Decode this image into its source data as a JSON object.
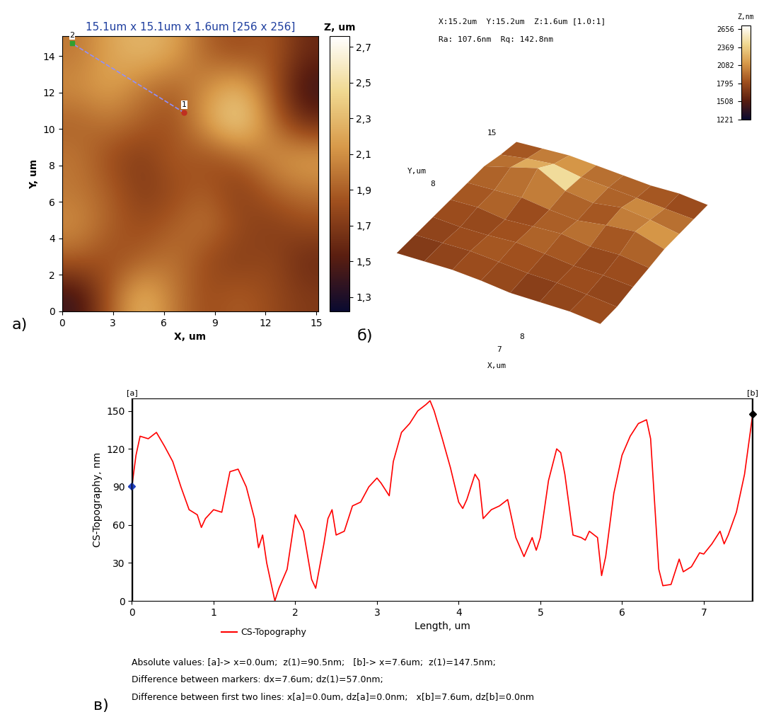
{
  "chart_data": [
    {
      "type": "heatmap",
      "panel_label": "а)",
      "title": "15.1um x 15.1um x 1.6um [256 x 256]",
      "x_label": "X, um",
      "y_label": "Y, um",
      "xlim": [
        0,
        15.1
      ],
      "ylim": [
        0,
        15.1
      ],
      "xticks": [
        0,
        3,
        6,
        9,
        12,
        15
      ],
      "yticks": [
        0,
        2,
        4,
        6,
        8,
        10,
        12,
        14
      ],
      "cells": [
        [
          1.4,
          1.9,
          2.3,
          2.0,
          1.8,
          1.9,
          1.8,
          1.7
        ],
        [
          1.9,
          1.8,
          1.9,
          2.0,
          1.8,
          1.7,
          1.8,
          1.6
        ],
        [
          2.1,
          1.9,
          1.8,
          1.9,
          2.0,
          1.8,
          1.7,
          1.8
        ],
        [
          2.0,
          1.9,
          1.7,
          1.8,
          1.9,
          1.7,
          1.9,
          2.0
        ],
        [
          2.0,
          1.8,
          1.7,
          1.9,
          1.8,
          1.9,
          2.1,
          2.2
        ],
        [
          1.9,
          2.0,
          1.9,
          1.8,
          2.2,
          2.5,
          2.0,
          1.6
        ],
        [
          2.1,
          2.2,
          2.0,
          1.9,
          2.1,
          2.3,
          1.9,
          1.4
        ],
        [
          2.0,
          2.2,
          2.3,
          2.2,
          1.9,
          1.8,
          1.9,
          1.6
        ]
      ],
      "colorbar_label": "Z, um",
      "colorbar_range": [
        1.22,
        2.76
      ],
      "colorbar_ticks": [
        {
          "value": 1.3,
          "label": "1,3"
        },
        {
          "value": 1.5,
          "label": "1,5"
        },
        {
          "value": 1.7,
          "label": "1,7"
        },
        {
          "value": 1.9,
          "label": "1,9"
        },
        {
          "value": 2.1,
          "label": "2,1"
        },
        {
          "value": 2.3,
          "label": "2,3"
        },
        {
          "value": 2.5,
          "label": "2,5"
        },
        {
          "value": 2.7,
          "label": "2,7"
        }
      ],
      "profile_line": {
        "x": [
          7.2,
          0.6
        ],
        "y": [
          10.9,
          14.7
        ],
        "labels": [
          "1",
          "2"
        ]
      }
    },
    {
      "type": "surface",
      "panel_label": "б)",
      "annotations": [
        "X:15.2um  Y:15.2um  Z:1.6um [1.0:1]",
        "Ra: 107.6nm  Rq: 142.8nm"
      ],
      "axis_texts": [
        "15",
        "8",
        "Y,um",
        "8",
        "7",
        "X,um"
      ],
      "xlim": [
        0,
        15.2
      ],
      "ylim": [
        0,
        15.2
      ],
      "cells": [
        [
          1700,
          1750,
          1800,
          1780,
          1720,
          1760,
          1800,
          1750
        ],
        [
          1750,
          1800,
          1850,
          1820,
          1780,
          1800,
          1760,
          1700
        ],
        [
          1800,
          1780,
          1820,
          1900,
          1850,
          1780,
          1800,
          1760
        ],
        [
          1850,
          1900,
          1800,
          1880,
          1950,
          1850,
          1900,
          1800
        ],
        [
          1900,
          1950,
          2000,
          1900,
          1850,
          2000,
          2100,
          1850
        ],
        [
          1950,
          2200,
          2450,
          2000,
          1900,
          2050,
          1950,
          1800
        ],
        [
          1850,
          2000,
          2100,
          1950,
          1900,
          1850,
          1800,
          1750
        ],
        [
          1800,
          1850,
          1900,
          1850,
          1800,
          1750,
          1780,
          1700
        ]
      ],
      "colorbar_label": "Z,nm",
      "colorbar_range": [
        1221,
        2720
      ],
      "colorbar_ticks": [
        1221,
        1508,
        1795,
        2082,
        2369,
        2656
      ]
    },
    {
      "type": "line",
      "panel_label": "в)",
      "x_label": "Length, um",
      "y_label": "CS-Topography, nm",
      "series": [
        {
          "name": "CS-Topography",
          "color": "#ff0000",
          "x": [
            0,
            0.05,
            0.1,
            0.2,
            0.3,
            0.4,
            0.5,
            0.6,
            0.7,
            0.8,
            0.85,
            0.9,
            1.0,
            1.1,
            1.2,
            1.3,
            1.4,
            1.5,
            1.55,
            1.6,
            1.65,
            1.7,
            1.75,
            1.8,
            1.9,
            2.0,
            2.1,
            2.2,
            2.25,
            2.35,
            2.4,
            2.45,
            2.5,
            2.6,
            2.7,
            2.8,
            2.9,
            3.0,
            3.05,
            3.15,
            3.2,
            3.3,
            3.4,
            3.5,
            3.6,
            3.65,
            3.7,
            3.8,
            3.9,
            4.0,
            4.05,
            4.1,
            4.2,
            4.25,
            4.3,
            4.4,
            4.5,
            4.6,
            4.7,
            4.8,
            4.9,
            4.95,
            5.0,
            5.1,
            5.2,
            5.25,
            5.3,
            5.4,
            5.5,
            5.55,
            5.6,
            5.7,
            5.75,
            5.8,
            5.9,
            6.0,
            6.1,
            6.2,
            6.3,
            6.35,
            6.45,
            6.5,
            6.6,
            6.7,
            6.75,
            6.85,
            6.95,
            7.0,
            7.1,
            7.2,
            7.25,
            7.3,
            7.4,
            7.5,
            7.6
          ],
          "values": [
            90.5,
            115,
            130,
            128,
            133,
            122,
            110,
            90,
            72,
            68,
            58,
            65,
            72,
            70,
            102,
            104,
            90,
            65,
            42,
            52,
            30,
            15,
            0,
            10,
            25,
            68,
            55,
            17,
            10,
            45,
            65,
            72,
            52,
            55,
            75,
            78,
            90,
            97,
            93,
            83,
            110,
            133,
            140,
            150,
            155,
            158,
            150,
            128,
            105,
            78,
            73,
            80,
            100,
            95,
            65,
            72,
            75,
            80,
            50,
            35,
            50,
            40,
            50,
            95,
            120,
            117,
            100,
            52,
            50,
            48,
            55,
            50,
            20,
            35,
            85,
            115,
            130,
            140,
            143,
            128,
            25,
            12,
            13,
            33,
            23,
            27,
            38,
            37,
            45,
            55,
            45,
            52,
            70,
            100,
            147.5
          ]
        }
      ],
      "xlim": [
        0,
        7.6
      ],
      "ylim": [
        0,
        160
      ],
      "xticks": [
        0,
        1,
        2,
        3,
        4,
        5,
        6,
        7
      ],
      "yticks": [
        0,
        30,
        60,
        90,
        120,
        150
      ],
      "markers": [
        {
          "label": "[a]",
          "x": 0,
          "y": 90.5,
          "color": "#1f3fbf"
        },
        {
          "label": "[b]",
          "x": 7.6,
          "y": 147.5,
          "color": "#000000"
        }
      ],
      "annotations": [
        "Absolute values: [a]-> x=0.0um;  z(1)=90.5nm;   [b]-> x=7.6um;  z(1)=147.5nm;",
        "Difference between markers: dx=7.6um; dz(1)=57.0nm;",
        "Difference between first two lines: x[a]=0.0um, dz[a]=0.0nm;   x[b]=7.6um, dz[b]=0.0nm"
      ]
    }
  ]
}
